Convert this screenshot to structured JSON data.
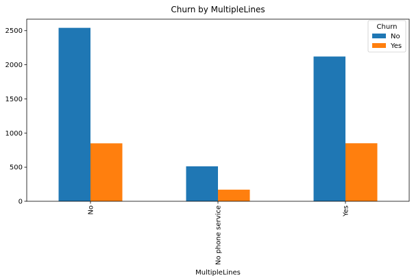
{
  "chart_data": {
    "type": "bar",
    "title": "Churn by MultipleLines",
    "xlabel": "MultipleLines",
    "ylabel": "",
    "categories": [
      "No",
      "No phone service",
      "Yes"
    ],
    "series": [
      {
        "name": "No",
        "color": "#1f77b4",
        "values": [
          2541,
          512,
          2121
        ]
      },
      {
        "name": "Yes",
        "color": "#ff7f0e",
        "values": [
          849,
          170,
          850
        ]
      }
    ],
    "ylim": [
      0,
      2668
    ],
    "yticks": [
      0,
      500,
      1000,
      1500,
      2000,
      2500
    ],
    "legend": {
      "title": "Churn",
      "position": "top-right"
    },
    "grid": false
  }
}
